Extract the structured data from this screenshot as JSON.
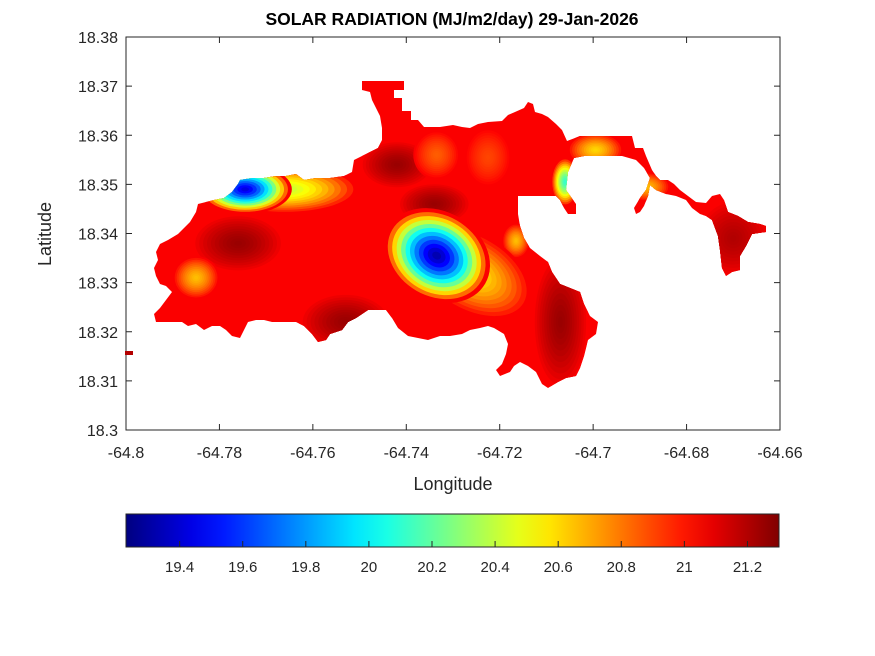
{
  "chart_data": {
    "type": "heatmap",
    "subtype": "filled-contour-map",
    "title": "SOLAR RADIATION (MJ/m2/day) 29-Jan-2026",
    "xlabel": "Longitude",
    "ylabel": "Latitude",
    "xlim": [
      -64.8,
      -64.66
    ],
    "ylim": [
      18.3,
      18.38
    ],
    "xticks": [
      -64.8,
      -64.78,
      -64.76,
      -64.74,
      -64.72,
      -64.7,
      -64.68,
      -64.66
    ],
    "xtick_labels": [
      "-64.8",
      "-64.78",
      "-64.76",
      "-64.74",
      "-64.72",
      "-64.7",
      "-64.68",
      "-64.66"
    ],
    "yticks": [
      18.3,
      18.31,
      18.32,
      18.33,
      18.34,
      18.35,
      18.36,
      18.37,
      18.38
    ],
    "ytick_labels": [
      "18.3",
      "18.31",
      "18.32",
      "18.33",
      "18.34",
      "18.35",
      "18.36",
      "18.37",
      "18.38"
    ],
    "grid": false,
    "colormap": "jet",
    "colorbar": {
      "orientation": "horizontal",
      "placement": "bottom",
      "clim": [
        19.23,
        21.3
      ],
      "ticks": [
        19.4,
        19.6,
        19.8,
        20,
        20.2,
        20.4,
        20.6,
        20.8,
        21,
        21.2
      ],
      "tick_labels": [
        "19.4",
        "19.6",
        "19.8",
        "20",
        "20.2",
        "20.4",
        "20.6",
        "20.8",
        "21",
        "21.2"
      ]
    },
    "background_value": 21.05,
    "features": [
      {
        "name": "central-minimum",
        "lon": -64.7335,
        "lat": 18.3355,
        "value": 19.3,
        "spread_lon": 0.006,
        "spread_lat": 0.0045
      },
      {
        "name": "central-yellow-tail",
        "lon": -64.726,
        "lat": 18.332,
        "value": 20.55,
        "spread_lon": 0.007,
        "spread_lat": 0.004
      },
      {
        "name": "north-coast-minimum",
        "lon": -64.7745,
        "lat": 18.349,
        "value": 19.4,
        "spread_lon": 0.005,
        "spread_lat": 0.0025
      },
      {
        "name": "north-coast-gradient",
        "lon": -64.766,
        "lat": 18.349,
        "value": 20.4,
        "spread_lon": 0.008,
        "spread_lat": 0.0025
      },
      {
        "name": "west-orange-spot",
        "lon": -64.785,
        "lat": 18.331,
        "value": 20.65,
        "spread_lon": 0.0025,
        "spread_lat": 0.0022
      },
      {
        "name": "east-bay-cyan",
        "lon": -64.706,
        "lat": 18.3505,
        "value": 20.1,
        "spread_lon": 0.0015,
        "spread_lat": 0.0025
      },
      {
        "name": "northeast-yellow",
        "lon": -64.6995,
        "lat": 18.357,
        "value": 20.6,
        "spread_lon": 0.003,
        "spread_lat": 0.0018
      },
      {
        "name": "spit-yellow",
        "lon": -64.6885,
        "lat": 18.3495,
        "value": 20.65,
        "spread_lon": 0.0025,
        "spread_lat": 0.0015
      },
      {
        "name": "east-orange-spot",
        "lon": -64.7165,
        "lat": 18.3385,
        "value": 20.65,
        "spread_lon": 0.0015,
        "spread_lat": 0.0018
      },
      {
        "name": "north-orange-spot",
        "lon": -64.7335,
        "lat": 18.356,
        "value": 20.85,
        "spread_lon": 0.0025,
        "spread_lat": 0.0025
      },
      {
        "name": "northeast-orange-spot",
        "lon": -64.7225,
        "lat": 18.3555,
        "value": 20.9,
        "spread_lon": 0.0025,
        "spread_lat": 0.003
      },
      {
        "name": "dark-patch-west",
        "lon": -64.776,
        "lat": 18.338,
        "value": 21.25,
        "spread_lon": 0.005,
        "spread_lat": 0.003
      },
      {
        "name": "dark-patch-north",
        "lon": -64.742,
        "lat": 18.354,
        "value": 21.25,
        "spread_lon": 0.004,
        "spread_lat": 0.0025
      },
      {
        "name": "dark-patch-center-north",
        "lon": -64.734,
        "lat": 18.346,
        "value": 21.25,
        "spread_lon": 0.004,
        "spread_lat": 0.0022
      },
      {
        "name": "dark-patch-south",
        "lon": -64.753,
        "lat": 18.322,
        "value": 21.25,
        "spread_lon": 0.005,
        "spread_lat": 0.003
      },
      {
        "name": "dark-patch-southeast",
        "lon": -64.707,
        "lat": 18.322,
        "value": 21.25,
        "spread_lon": 0.003,
        "spread_lat": 0.007
      },
      {
        "name": "east-island",
        "lon": -64.67,
        "lat": 18.339,
        "value": 21.2,
        "spread_lon": 0.004,
        "spread_lat": 0.004
      }
    ]
  }
}
